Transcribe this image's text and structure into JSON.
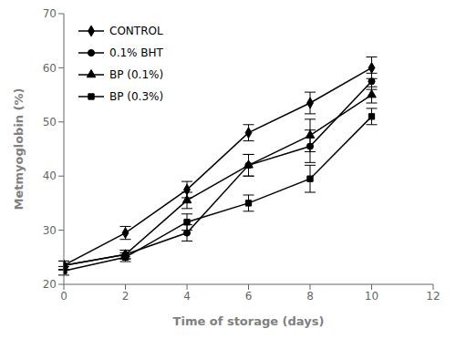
{
  "chart_data": {
    "type": "line",
    "xlabel": "Time of storage (days)",
    "ylabel": "Metmyoglobin (%)",
    "x": [
      0,
      2,
      4,
      6,
      8,
      10
    ],
    "series": [
      {
        "name": "CONTROL",
        "color": "#000000",
        "marker": "diamond",
        "values": [
          23.5,
          29.5,
          37.5,
          48.0,
          53.5,
          60.0
        ],
        "errors": [
          0.8,
          1.2,
          1.5,
          1.5,
          2.0,
          2.0
        ]
      },
      {
        "name": "0.1% BHT",
        "color": "#000000",
        "marker": "circle",
        "values": [
          23.5,
          25.5,
          29.5,
          42.0,
          45.5,
          57.5
        ],
        "errors": [
          0.8,
          0.8,
          1.5,
          2.0,
          3.0,
          1.5
        ]
      },
      {
        "name": "BP (0.1%)",
        "color": "#000000",
        "marker": "triangle",
        "values": [
          23.5,
          25.5,
          35.5,
          42.0,
          47.5,
          55.0
        ],
        "errors": [
          0.8,
          0.8,
          1.5,
          2.0,
          3.0,
          1.5
        ]
      },
      {
        "name": "BP (0.3%)",
        "color": "#000000",
        "marker": "square",
        "values": [
          22.5,
          25.0,
          31.5,
          35.0,
          39.5,
          51.0
        ],
        "errors": [
          0.8,
          0.8,
          1.5,
          1.5,
          2.5,
          1.5
        ]
      }
    ],
    "xlim": [
      0,
      12
    ],
    "ylim": [
      20,
      70
    ],
    "xticks": [
      0,
      2,
      4,
      6,
      8,
      10,
      12
    ],
    "yticks": [
      20,
      30,
      40,
      50,
      60,
      70
    ],
    "legend": "upper left",
    "grid": false
  }
}
